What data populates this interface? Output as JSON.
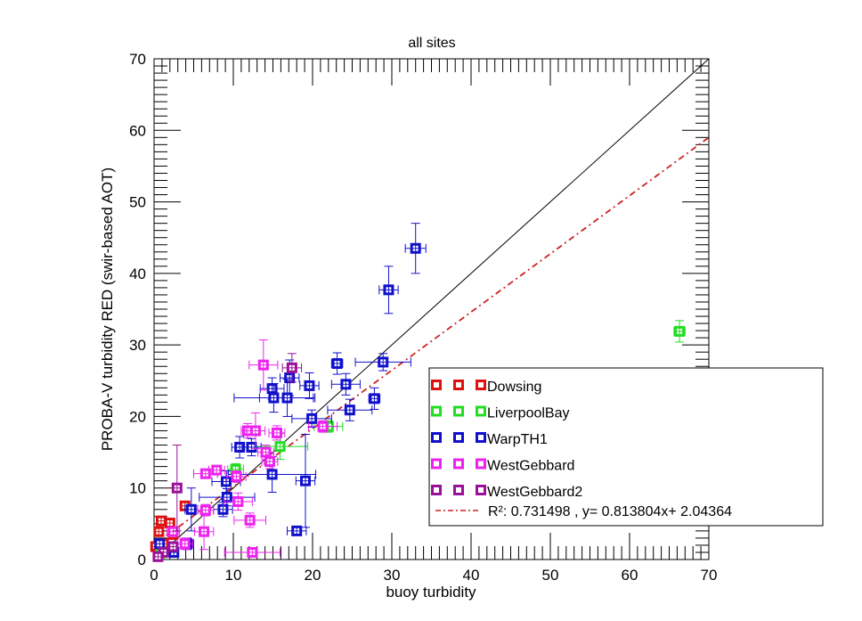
{
  "chart_data": {
    "type": "scatter",
    "title": "all sites",
    "xlabel": "buoy turbidity",
    "ylabel": "PROBA-V turbidity RED (swir-based AOT)",
    "xlim": [
      0,
      70
    ],
    "ylim": [
      0,
      70
    ],
    "xticks": [
      0,
      10,
      20,
      30,
      40,
      50,
      60,
      70
    ],
    "yticks": [
      0,
      10,
      20,
      30,
      40,
      50,
      60,
      70
    ],
    "minor_tick_step": 1,
    "grid": false,
    "legend_placement": "lower-right",
    "series": [
      {
        "name": "Dowsing",
        "color": "#e01010",
        "points": [
          {
            "x": 3.9,
            "y": 7.5,
            "xerr": 0.5,
            "yerr": 0.6
          },
          {
            "x": 0.9,
            "y": 5.4,
            "xerr": 0.6,
            "yerr": 0.5
          },
          {
            "x": 2.0,
            "y": 5.1,
            "xerr": 0.6,
            "yerr": 0.5
          },
          {
            "x": 0.6,
            "y": 3.9,
            "xerr": 0.4,
            "yerr": 0.4
          },
          {
            "x": 2.4,
            "y": 3.5,
            "xerr": 0.5,
            "yerr": 0.5
          },
          {
            "x": 0.2,
            "y": 1.8,
            "xerr": 0.3,
            "yerr": 0.3
          },
          {
            "x": 1.2,
            "y": 2.2,
            "xerr": 0.4,
            "yerr": 0.4
          },
          {
            "x": 0.5,
            "y": 0.8,
            "xerr": 0.3,
            "yerr": 0.3
          }
        ]
      },
      {
        "name": "LiverpoolBay",
        "color": "#22dd22",
        "points": [
          {
            "x": 66.3,
            "y": 31.9,
            "xerr": 0.7,
            "yerr": 1.5
          },
          {
            "x": 22.0,
            "y": 18.6,
            "xerr": 1.8,
            "yerr": 0.8
          },
          {
            "x": 15.9,
            "y": 15.8,
            "xerr": 3.5,
            "yerr": 1.8
          },
          {
            "x": 10.3,
            "y": 12.6,
            "xerr": 1.0,
            "yerr": 0.8
          },
          {
            "x": 0.8,
            "y": 0.9,
            "xerr": 0.3,
            "yerr": 0.3
          }
        ]
      },
      {
        "name": "WarpTH1",
        "color": "#1010cc",
        "points": [
          {
            "x": 33.0,
            "y": 43.5,
            "xerr": 1.3,
            "yerr": 3.5
          },
          {
            "x": 29.6,
            "y": 37.7,
            "xerr": 1.2,
            "yerr": 3.3
          },
          {
            "x": 23.1,
            "y": 27.4,
            "xerr": 0.7,
            "yerr": 1.5
          },
          {
            "x": 28.9,
            "y": 27.6,
            "xerr": 3.5,
            "yerr": 1.2
          },
          {
            "x": 17.1,
            "y": 25.4,
            "xerr": 1.2,
            "yerr": 2.5
          },
          {
            "x": 19.6,
            "y": 24.3,
            "xerr": 1.2,
            "yerr": 1.8
          },
          {
            "x": 24.2,
            "y": 24.5,
            "xerr": 1.8,
            "yerr": 1.5
          },
          {
            "x": 14.9,
            "y": 23.9,
            "xerr": 1.5,
            "yerr": 1.5
          },
          {
            "x": 15.1,
            "y": 22.6,
            "xerr": 5.0,
            "yerr": 2.0
          },
          {
            "x": 16.8,
            "y": 22.6,
            "xerr": 3.5,
            "yerr": 2.6
          },
          {
            "x": 27.8,
            "y": 22.5,
            "xerr": 0.7,
            "yerr": 1.5
          },
          {
            "x": 24.7,
            "y": 20.9,
            "xerr": 2.8,
            "yerr": 1.5
          },
          {
            "x": 19.9,
            "y": 19.7,
            "xerr": 2.5,
            "yerr": 1.2
          },
          {
            "x": 10.8,
            "y": 15.7,
            "xerr": 1.0,
            "yerr": 1.5
          },
          {
            "x": 12.3,
            "y": 15.7,
            "xerr": 1.2,
            "yerr": 1.2
          },
          {
            "x": 14.9,
            "y": 11.9,
            "xerr": 5.5,
            "yerr": 2.5
          },
          {
            "x": 19.1,
            "y": 11.0,
            "xerr": 1.2,
            "yerr": 6.5
          },
          {
            "x": 9.1,
            "y": 10.9,
            "xerr": 1.8,
            "yerr": 1.5
          },
          {
            "x": 9.2,
            "y": 8.7,
            "xerr": 3.5,
            "yerr": 1.2
          },
          {
            "x": 8.7,
            "y": 7.0,
            "xerr": 1.2,
            "yerr": 1.0
          },
          {
            "x": 4.7,
            "y": 7.0,
            "xerr": 0.8,
            "yerr": 3.0
          },
          {
            "x": 18.0,
            "y": 4.0,
            "xerr": 1.2,
            "yerr": 0.6
          },
          {
            "x": 4.2,
            "y": 2.2,
            "xerr": 0.8,
            "yerr": 0.8
          },
          {
            "x": 0.7,
            "y": 2.2,
            "xerr": 0.4,
            "yerr": 0.5
          },
          {
            "x": 2.5,
            "y": 1.0,
            "xerr": 0.6,
            "yerr": 0.5
          }
        ]
      },
      {
        "name": "WestGebbard",
        "color": "#ee22ee",
        "points": [
          {
            "x": 13.8,
            "y": 27.2,
            "xerr": 1.8,
            "yerr": 3.5
          },
          {
            "x": 11.8,
            "y": 18.0,
            "xerr": 0.8,
            "yerr": 1.0
          },
          {
            "x": 12.8,
            "y": 18.0,
            "xerr": 1.2,
            "yerr": 2.5
          },
          {
            "x": 15.5,
            "y": 17.7,
            "xerr": 1.0,
            "yerr": 1.0
          },
          {
            "x": 14.1,
            "y": 15.0,
            "xerr": 1.0,
            "yerr": 1.0
          },
          {
            "x": 14.6,
            "y": 13.7,
            "xerr": 1.0,
            "yerr": 1.0
          },
          {
            "x": 21.3,
            "y": 18.6,
            "xerr": 1.8,
            "yerr": 0.8
          },
          {
            "x": 6.5,
            "y": 12.0,
            "xerr": 1.5,
            "yerr": 0.6
          },
          {
            "x": 7.9,
            "y": 12.5,
            "xerr": 1.0,
            "yerr": 0.6
          },
          {
            "x": 10.4,
            "y": 11.6,
            "xerr": 1.2,
            "yerr": 0.8
          },
          {
            "x": 10.6,
            "y": 8.1,
            "xerr": 1.8,
            "yerr": 1.2
          },
          {
            "x": 6.5,
            "y": 6.9,
            "xerr": 1.0,
            "yerr": 0.8
          },
          {
            "x": 12.1,
            "y": 5.5,
            "xerr": 2.0,
            "yerr": 1.0
          },
          {
            "x": 6.3,
            "y": 3.9,
            "xerr": 1.2,
            "yerr": 2.5
          },
          {
            "x": 12.4,
            "y": 1.0,
            "xerr": 3.5,
            "yerr": 0.4
          },
          {
            "x": 3.9,
            "y": 2.2,
            "xerr": 1.0,
            "yerr": 0.8
          },
          {
            "x": 2.4,
            "y": 3.9,
            "xerr": 0.8,
            "yerr": 0.6
          }
        ]
      },
      {
        "name": "WestGebbard2",
        "color": "#991199",
        "points": [
          {
            "x": 17.4,
            "y": 26.8,
            "xerr": 1.2,
            "yerr": 2.0
          },
          {
            "x": 2.9,
            "y": 10.0,
            "xerr": 0.4,
            "yerr": 6.0
          },
          {
            "x": 1.2,
            "y": 1.0,
            "xerr": 0.5,
            "yerr": 0.5
          },
          {
            "x": 2.4,
            "y": 1.8,
            "xerr": 0.6,
            "yerr": 0.6
          },
          {
            "x": 0.5,
            "y": 0.4,
            "xerr": 0.3,
            "yerr": 0.3
          }
        ]
      }
    ],
    "reference_line": {
      "type": "1:1",
      "color": "#000000"
    },
    "fit": {
      "slope": 0.813804,
      "intercept": 2.04364,
      "color": "#cc2222",
      "style": "dash-dot",
      "label": "R²: 0.731498 , y= 0.813804x+ 2.04364"
    }
  }
}
